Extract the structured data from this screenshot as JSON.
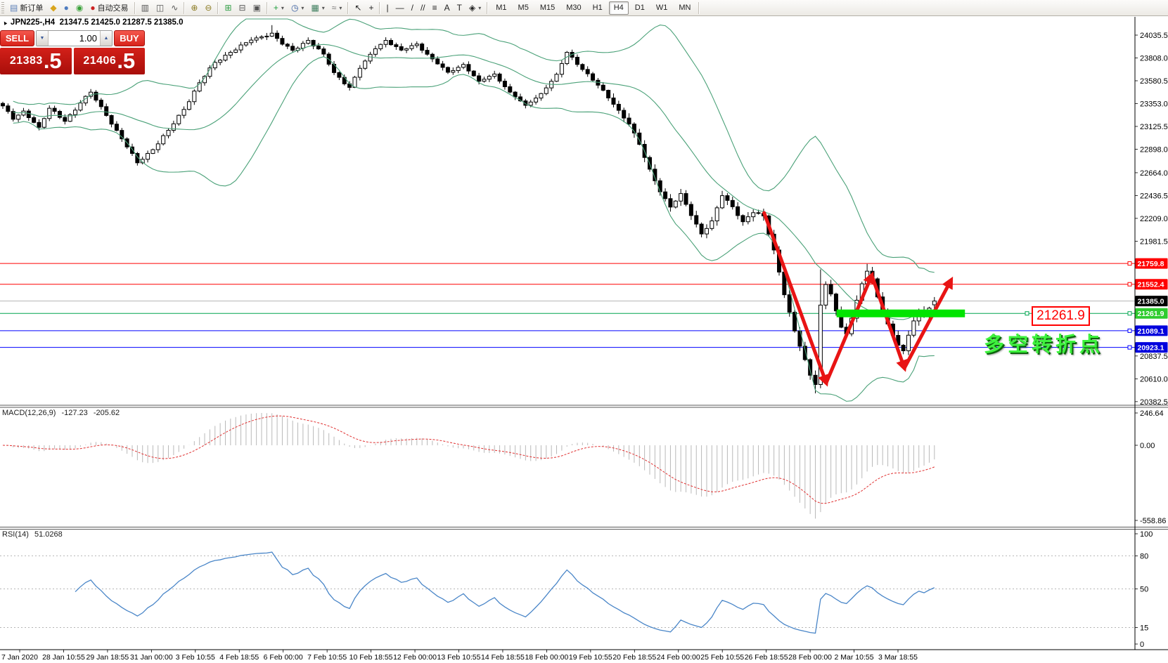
{
  "toolbar": {
    "items": [
      {
        "type": "handle"
      },
      {
        "name": "new-order",
        "label": "新订单",
        "glyph": "▤",
        "color": "#5b7fb8"
      },
      {
        "name": "gold",
        "glyph": "◆",
        "color": "#d9a51d"
      },
      {
        "name": "community",
        "glyph": "●",
        "color": "#4f7cc0"
      },
      {
        "name": "signals",
        "glyph": "◉",
        "color": "#3aa23a"
      },
      {
        "name": "auto-trading",
        "label": "自动交易",
        "glyph": "●",
        "color": "#cc2222"
      },
      {
        "type": "sep"
      },
      {
        "name": "bar-chart",
        "glyph": "▥",
        "color": "#555555"
      },
      {
        "name": "candlestick-chart",
        "glyph": "◫",
        "color": "#555555"
      },
      {
        "name": "line-chart",
        "glyph": "∿",
        "color": "#555555"
      },
      {
        "type": "sep"
      },
      {
        "name": "zoom-in",
        "glyph": "⊕",
        "color": "#8a7a20"
      },
      {
        "name": "zoom-out",
        "glyph": "⊖",
        "color": "#8a7a20"
      },
      {
        "type": "sep"
      },
      {
        "name": "tile-windows",
        "glyph": "⊞",
        "color": "#2f9e44"
      },
      {
        "name": "arrange-windows",
        "glyph": "⊟",
        "color": "#555555"
      },
      {
        "name": "cascade-windows",
        "glyph": "▣",
        "color": "#555555"
      },
      {
        "type": "sep"
      },
      {
        "name": "new-chart",
        "glyph": "+",
        "color": "#1e9e3e",
        "caret": true
      },
      {
        "name": "periods",
        "glyph": "◷",
        "color": "#335a9e",
        "caret": true
      },
      {
        "name": "templates",
        "glyph": "▦",
        "color": "#3e7e5e",
        "caret": true
      },
      {
        "name": "indicators",
        "glyph": "≈",
        "color": "#777777",
        "caret": true
      },
      {
        "type": "sep"
      },
      {
        "name": "cursor",
        "glyph": "↖",
        "color": "#222222"
      },
      {
        "name": "crosshair",
        "glyph": "+",
        "color": "#222222"
      },
      {
        "type": "sep"
      },
      {
        "name": "vertical-line",
        "glyph": "|",
        "color": "#222222"
      },
      {
        "name": "horizontal-line",
        "glyph": "—",
        "color": "#222222"
      },
      {
        "name": "trendline",
        "glyph": "/",
        "color": "#222222"
      },
      {
        "name": "equidistant-channel",
        "glyph": "//",
        "color": "#222222"
      },
      {
        "name": "fibonacci",
        "glyph": "≡",
        "color": "#222222"
      },
      {
        "name": "text",
        "glyph": "A",
        "color": "#222222"
      },
      {
        "name": "text-label",
        "glyph": "T",
        "color": "#222222"
      },
      {
        "name": "arrows",
        "glyph": "◈",
        "color": "#222222",
        "caret": true
      },
      {
        "type": "sep"
      }
    ],
    "timeframes": [
      "M1",
      "M5",
      "M15",
      "M30",
      "H1",
      "H4",
      "D1",
      "W1",
      "MN"
    ],
    "active_timeframe": "H4"
  },
  "chart": {
    "symbol_label": "JPN225-,H4",
    "ohlc_text": "21347.5 21425.0 21287.5 21385.0"
  },
  "trade_panel": {
    "sell_label": "SELL",
    "buy_label": "BUY",
    "volume": "1.00",
    "bid_main": "21383",
    "bid_frac": ".5",
    "ask_main": "21406",
    "ask_frac": ".5"
  },
  "annotations": {
    "price_tag": {
      "text": "21261.9"
    },
    "turning_point": {
      "text": "多空转折点"
    },
    "trend_arrows": {
      "color": "#e81414",
      "points": [
        [
          147.1,
          22264
        ],
        [
          159.1,
          20570
        ],
        [
          167.9,
          21641
        ],
        [
          174.2,
          20717
        ],
        [
          183.2,
          21592
        ]
      ]
    },
    "highlight_bar": {
      "from_bar": 161.1,
      "to_bar": 185.9,
      "price": 21261.9,
      "color": "#00e400"
    }
  },
  "chart_data": {
    "type": "candlestick",
    "symbol": "JPN225-",
    "timeframe": "H4",
    "current_ohlc": {
      "open": 21347.5,
      "high": 21425.0,
      "low": 21287.5,
      "close": 21385.0
    },
    "bid": 21383.5,
    "ask": 21406.5,
    "bars": 181,
    "y_ticks": [
      "24035.5",
      "23808.0",
      "23580.5",
      "23353.0",
      "23125.5",
      "22898.0",
      "22664.0",
      "22436.5",
      "22209.0",
      "21981.5",
      "20837.5",
      "20610.0",
      "20382.5"
    ],
    "x_labels": [
      "7 Jan 2020",
      "28 Jan 10:55",
      "29 Jan 18:55",
      "31 Jan 00:00",
      "3 Feb 10:55",
      "4 Feb 18:55",
      "6 Feb 00:00",
      "7 Feb 10:55",
      "10 Feb 18:55",
      "12 Feb 00:00",
      "13 Feb 10:55",
      "14 Feb 18:55",
      "18 Feb 00:00",
      "19 Feb 10:55",
      "20 Feb 18:55",
      "24 Feb 00:00",
      "25 Feb 10:55",
      "26 Feb 18:55",
      "28 Feb 00:00",
      "2 Mar 10:55",
      "3 Mar 18:55"
    ],
    "price_levels": [
      {
        "label": "21759.8",
        "price": 21759.8,
        "line": "#ff0000",
        "badge": "#ff0000"
      },
      {
        "label": "21552.4",
        "price": 21552.4,
        "line": "#ff0000",
        "badge": "#ff0000"
      },
      {
        "label": "21385.0",
        "price": 21385.0,
        "line": "#b4b4b4",
        "badge": "#000000",
        "current": true
      },
      {
        "label": "21261.9",
        "price": 21261.9,
        "line": "#00a650",
        "badge": "#2ecc2e"
      },
      {
        "label": "21089.1",
        "price": 21089.1,
        "line": "#0000ff",
        "badge": "#0000dd"
      },
      {
        "label": "20923.1",
        "price": 20923.1,
        "line": "#0000ff",
        "badge": "#0000dd"
      }
    ],
    "close_waypoints": [
      [
        0,
        23330
      ],
      [
        2,
        23190
      ],
      [
        4,
        23280
      ],
      [
        7,
        23120
      ],
      [
        9,
        23300
      ],
      [
        12,
        23180
      ],
      [
        15,
        23360
      ],
      [
        17,
        23460
      ],
      [
        20,
        23240
      ],
      [
        23,
        23000
      ],
      [
        26,
        22760
      ],
      [
        29,
        22900
      ],
      [
        32,
        23080
      ],
      [
        35,
        23300
      ],
      [
        38,
        23560
      ],
      [
        41,
        23760
      ],
      [
        44,
        23870
      ],
      [
        48,
        23980
      ],
      [
        52,
        24060
      ],
      [
        54,
        23940
      ],
      [
        56,
        23880
      ],
      [
        59,
        23990
      ],
      [
        62,
        23840
      ],
      [
        64,
        23660
      ],
      [
        67,
        23520
      ],
      [
        69,
        23700
      ],
      [
        72,
        23900
      ],
      [
        74,
        23990
      ],
      [
        77,
        23880
      ],
      [
        80,
        23950
      ],
      [
        83,
        23800
      ],
      [
        86,
        23660
      ],
      [
        89,
        23750
      ],
      [
        92,
        23570
      ],
      [
        95,
        23650
      ],
      [
        98,
        23470
      ],
      [
        101,
        23330
      ],
      [
        104,
        23460
      ],
      [
        107,
        23640
      ],
      [
        109,
        23860
      ],
      [
        112,
        23700
      ],
      [
        115,
        23530
      ],
      [
        118,
        23350
      ],
      [
        121,
        23150
      ],
      [
        123,
        22940
      ],
      [
        125,
        22700
      ],
      [
        127,
        22480
      ],
      [
        129,
        22320
      ],
      [
        131,
        22450
      ],
      [
        133,
        22240
      ],
      [
        135,
        22060
      ],
      [
        137,
        22180
      ],
      [
        139,
        22430
      ],
      [
        141,
        22330
      ],
      [
        143,
        22180
      ],
      [
        145,
        22260
      ],
      [
        147,
        22230
      ],
      [
        149,
        21900
      ],
      [
        151,
        21450
      ],
      [
        153,
        21080
      ],
      [
        155,
        20800
      ],
      [
        156,
        20650
      ],
      [
        157,
        20560
      ],
      [
        158,
        21350
      ],
      [
        159,
        21550
      ],
      [
        160,
        21450
      ],
      [
        161,
        21280
      ],
      [
        162,
        21120
      ],
      [
        163,
        21060
      ],
      [
        164,
        21220
      ],
      [
        165,
        21400
      ],
      [
        166,
        21560
      ],
      [
        167,
        21680
      ],
      [
        168,
        21600
      ],
      [
        169,
        21420
      ],
      [
        170,
        21280
      ],
      [
        171,
        21160
      ],
      [
        172,
        21050
      ],
      [
        173,
        20950
      ],
      [
        174,
        20890
      ],
      [
        175,
        21040
      ],
      [
        176,
        21180
      ],
      [
        177,
        21280
      ],
      [
        178,
        21230
      ],
      [
        179,
        21320
      ],
      [
        180,
        21385
      ]
    ],
    "indicators": {
      "bollinger": {
        "period": 20,
        "deviation": 2,
        "color": "#4aa178"
      },
      "macd": {
        "name": "MACD(12,26,9)",
        "value_main": "-127.23",
        "value_signal": "-205.62",
        "scale_labels": [
          "246.64",
          "0.00",
          "-558.86"
        ],
        "histogram_color": "#b9b9b9",
        "signal_color": "#e03030"
      },
      "rsi": {
        "name": "RSI(14)",
        "value": "51.0268",
        "levels": [
          100,
          80,
          50,
          15,
          0
        ],
        "dashed_levels": [
          80,
          50,
          15
        ],
        "line_color": "#4a86c8"
      }
    },
    "colors": {
      "up_candle": "#ffffff",
      "down_candle": "#000000",
      "resistance": "#ff0000",
      "support": "#0000ff",
      "pivot_green": "#00a650",
      "highlight_green": "#00e400",
      "arrow_red": "#e81414",
      "current_price_badge": "#000000"
    }
  }
}
